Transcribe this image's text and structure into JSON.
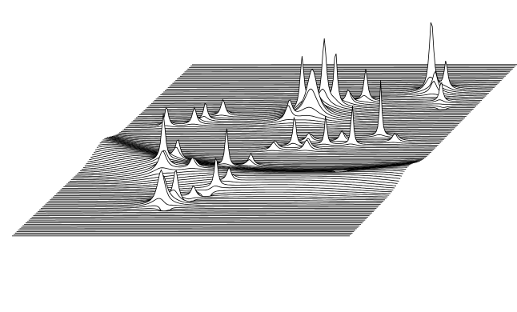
{
  "chart_data": {
    "type": "stacked-trace-3d",
    "title": "",
    "xlabel": "",
    "ylabel": "",
    "zlabel": "",
    "grid": false,
    "legend": "none",
    "line_color": "#000000",
    "fill_color": "#ffffff",
    "background": "#ffffff",
    "trace_count": 120,
    "x_range": [
      0,
      1
    ],
    "ridge": {
      "a": 0.5,
      "b": 0.6,
      "c": -0.45,
      "width": 0.045,
      "amplitude": 12
    },
    "spikes": [
      {
        "x": 0.25,
        "y": 0.62,
        "z": 80,
        "w": 0.006
      },
      {
        "x": 0.28,
        "y": 0.6,
        "z": 55,
        "w": 0.006
      },
      {
        "x": 0.36,
        "y": 0.66,
        "z": 45,
        "w": 0.005
      },
      {
        "x": 0.44,
        "y": 0.62,
        "z": 90,
        "w": 0.004
      },
      {
        "x": 0.5,
        "y": 0.6,
        "z": 40,
        "w": 0.005
      },
      {
        "x": 0.27,
        "y": 0.66,
        "z": 35,
        "w": 0.012
      },
      {
        "x": 0.52,
        "y": 0.5,
        "z": 30,
        "w": 0.006
      },
      {
        "x": 0.57,
        "y": 0.48,
        "z": 45,
        "w": 0.005
      },
      {
        "x": 0.6,
        "y": 0.45,
        "z": 35,
        "w": 0.005
      },
      {
        "x": 0.62,
        "y": 0.5,
        "z": 50,
        "w": 0.005
      },
      {
        "x": 0.66,
        "y": 0.47,
        "z": 40,
        "w": 0.004
      },
      {
        "x": 0.7,
        "y": 0.45,
        "z": 60,
        "w": 0.004
      },
      {
        "x": 0.74,
        "y": 0.47,
        "z": 55,
        "w": 0.004
      },
      {
        "x": 0.8,
        "y": 0.42,
        "z": 70,
        "w": 0.004
      },
      {
        "x": 0.86,
        "y": 0.45,
        "z": 35,
        "w": 0.005
      },
      {
        "x": 0.5,
        "y": 0.3,
        "z": 130,
        "w": 0.005
      },
      {
        "x": 0.53,
        "y": 0.29,
        "z": 85,
        "w": 0.006
      },
      {
        "x": 0.55,
        "y": 0.27,
        "z": 90,
        "w": 0.008
      },
      {
        "x": 0.58,
        "y": 0.26,
        "z": 70,
        "w": 0.006
      },
      {
        "x": 0.61,
        "y": 0.24,
        "z": 55,
        "w": 0.005
      },
      {
        "x": 0.65,
        "y": 0.22,
        "z": 50,
        "w": 0.006
      },
      {
        "x": 0.48,
        "y": 0.34,
        "z": 60,
        "w": 0.006
      },
      {
        "x": 0.54,
        "y": 0.32,
        "z": 60,
        "w": 0.02
      },
      {
        "x": 0.35,
        "y": 0.82,
        "z": 60,
        "w": 0.012
      },
      {
        "x": 0.38,
        "y": 0.8,
        "z": 45,
        "w": 0.008
      },
      {
        "x": 0.41,
        "y": 0.79,
        "z": -55,
        "w": 0.005
      },
      {
        "x": 0.37,
        "y": 0.84,
        "z": -50,
        "w": 0.005
      },
      {
        "x": 0.45,
        "y": 0.76,
        "z": -65,
        "w": 0.005
      },
      {
        "x": 0.42,
        "y": 0.77,
        "z": 35,
        "w": 0.005
      },
      {
        "x": 0.47,
        "y": 0.74,
        "z": 40,
        "w": 0.006
      },
      {
        "x": 0.5,
        "y": 0.72,
        "z": 30,
        "w": 0.006
      },
      {
        "x": 0.8,
        "y": 0.66,
        "z": -45,
        "w": 0.004
      },
      {
        "x": 0.82,
        "y": 0.16,
        "z": 90,
        "w": 0.008
      },
      {
        "x": 0.84,
        "y": 0.18,
        "z": 60,
        "w": 0.006
      },
      {
        "x": 0.86,
        "y": 0.15,
        "z": 40,
        "w": 0.006
      },
      {
        "x": 0.88,
        "y": 0.22,
        "z": 35,
        "w": 0.005
      },
      {
        "x": 0.9,
        "y": 0.25,
        "z": -25,
        "w": 0.004
      },
      {
        "x": 0.2,
        "y": 0.35,
        "z": 50,
        "w": 0.005
      },
      {
        "x": 0.22,
        "y": 0.33,
        "z": 40,
        "w": 0.005
      },
      {
        "x": 0.26,
        "y": 0.3,
        "z": 35,
        "w": 0.006
      },
      {
        "x": 0.12,
        "y": 0.36,
        "z": 30,
        "w": 0.006
      }
    ]
  }
}
